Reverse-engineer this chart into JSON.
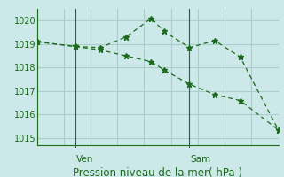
{
  "bg_color": "#cce8e8",
  "line_color": "#1a6b1a",
  "grid_color": "#aacccc",
  "ylim": [
    1014.7,
    1020.5
  ],
  "xlim": [
    0,
    9.5
  ],
  "yticks": [
    1015,
    1016,
    1017,
    1018,
    1019,
    1020
  ],
  "ven_x": 1.5,
  "sam_x": 6.0,
  "line1_x": [
    0.0,
    1.5,
    2.5,
    3.5,
    4.5,
    5.0,
    6.0,
    7.0,
    8.0,
    9.5
  ],
  "line1_y": [
    1019.1,
    1018.9,
    1018.85,
    1019.3,
    1020.1,
    1019.55,
    1018.85,
    1019.15,
    1018.45,
    1015.35
  ],
  "line2_x": [
    0.0,
    1.5,
    2.5,
    3.5,
    4.5,
    5.0,
    6.0,
    7.0,
    8.0,
    9.5
  ],
  "line2_y": [
    1019.1,
    1018.9,
    1018.75,
    1018.5,
    1018.25,
    1017.9,
    1017.3,
    1016.85,
    1016.6,
    1015.35
  ],
  "xlabel": "Pression niveau de la mer( hPa )",
  "xlabel_fontsize": 8.5,
  "tick_fontsize": 7,
  "day_label_fontsize": 7.5,
  "figwidth": 3.2,
  "figheight": 2.0,
  "dpi": 100
}
